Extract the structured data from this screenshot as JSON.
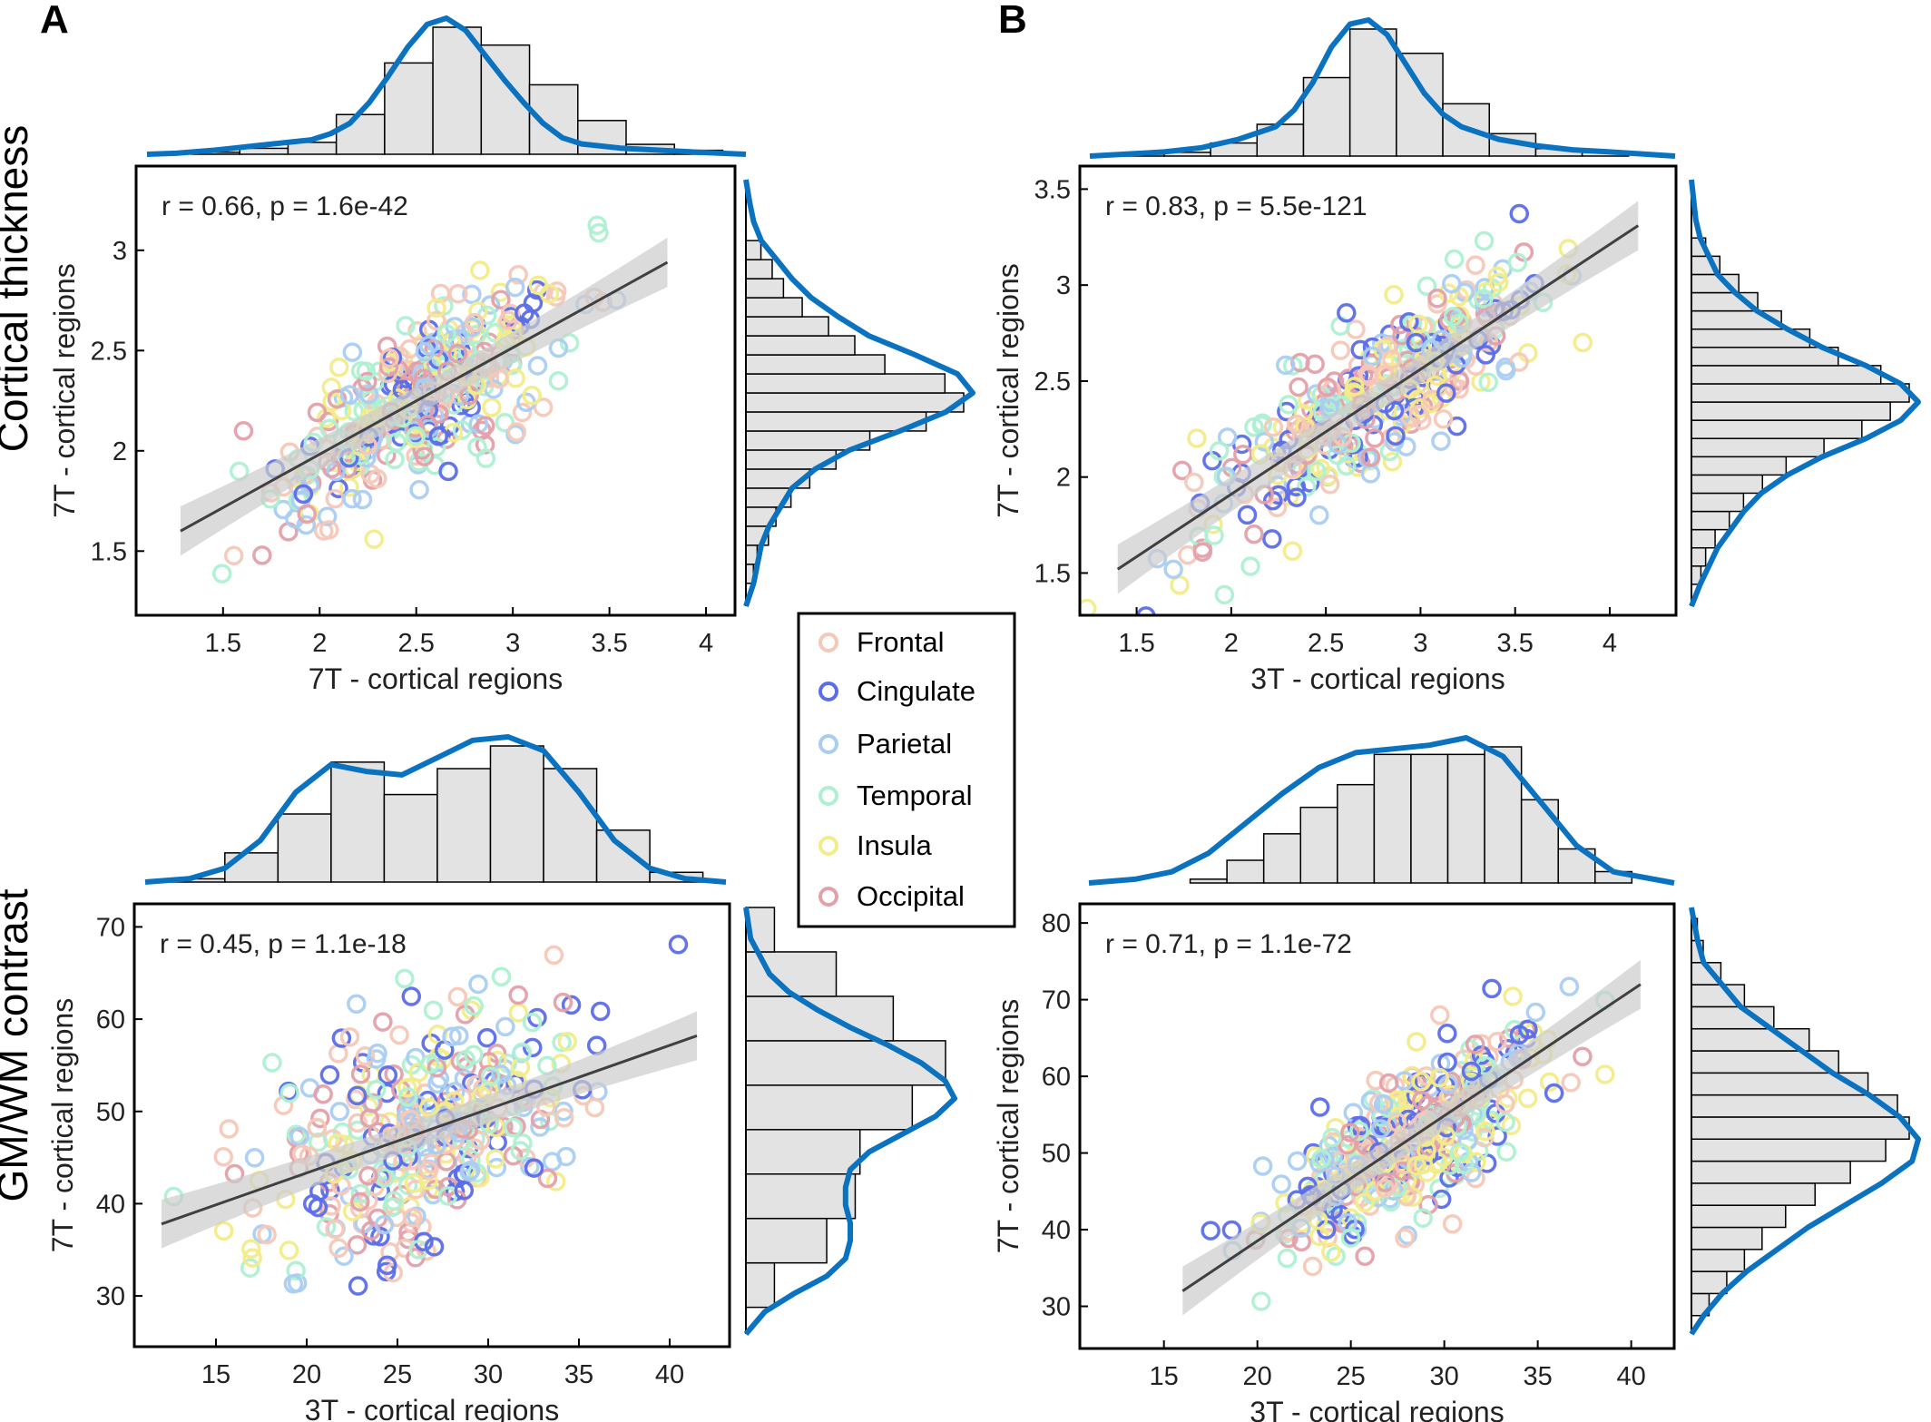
{
  "figure": {
    "panel_labels": [
      "A",
      "B"
    ],
    "row_labels": [
      "Cortical thickness",
      "GM/WM contrast"
    ]
  },
  "legend": {
    "items": [
      {
        "label": "Frontal",
        "color": "#f5c8b8"
      },
      {
        "label": "Cingulate",
        "color": "#5b6ee8"
      },
      {
        "label": "Parietal",
        "color": "#a9cdf2"
      },
      {
        "label": "Temporal",
        "color": "#aef0d2"
      },
      {
        "label": "Insula",
        "color": "#f2ec8a"
      },
      {
        "label": "Occipital",
        "color": "#e3a0aa"
      }
    ]
  },
  "colors": {
    "kde_line": "#0b72c0",
    "hist_fill": "#e3e3e3",
    "fit_line": "#404040",
    "ci_band": "#cccccc"
  },
  "chart_data": [
    {
      "type": "scatter",
      "id": "A-thickness",
      "xlabel": "7T - cortical regions",
      "ylabel": "7T - cortical regions",
      "annotation": "r = 0.66, p = 1.6e-42",
      "xlim": [
        1.05,
        4.15
      ],
      "ylim": [
        1.18,
        3.42
      ],
      "xticks": [
        1.5,
        2,
        2.5,
        3,
        3.5,
        4
      ],
      "yticks": [
        1.5,
        2,
        2.5,
        3
      ],
      "xtick_labels": [
        "1.5",
        "2",
        "2.5",
        "3",
        "3.5",
        "4"
      ],
      "ytick_labels": [
        "1.5",
        "2",
        "2.5",
        "3"
      ],
      "fit": {
        "x": [
          1.28,
          3.8
        ],
        "y": [
          1.6,
          2.94
        ]
      },
      "top_hist": {
        "bins": [
          1.28,
          1.53,
          1.78,
          2.03,
          2.28,
          2.53,
          2.78,
          3.03,
          3.28,
          3.53,
          3.78,
          4.03
        ],
        "counts": [
          1,
          3,
          6,
          20,
          46,
          64,
          55,
          35,
          17,
          5,
          2
        ]
      },
      "right_hist": {
        "bins": [
          1.3,
          1.4,
          1.5,
          1.6,
          1.7,
          1.8,
          1.9,
          2.0,
          2.1,
          2.2,
          2.3,
          2.4,
          2.5,
          2.6,
          2.7,
          2.8,
          2.9,
          3.0,
          3.1
        ],
        "counts": [
          2,
          3,
          6,
          8,
          12,
          17,
          24,
          33,
          48,
          58,
          53,
          37,
          29,
          22,
          15,
          10,
          7,
          4
        ]
      },
      "top_kde_x": [
        1.05,
        1.2,
        1.4,
        1.6,
        1.8,
        1.9,
        2.0,
        2.1,
        2.2,
        2.3,
        2.4,
        2.5,
        2.6,
        2.7,
        2.8,
        2.9,
        3.0,
        3.1,
        3.2,
        3.3,
        3.5,
        3.7,
        3.9,
        4.15
      ],
      "top_kde_y": [
        0,
        0.5,
        2,
        4,
        6,
        7,
        10,
        15,
        25,
        38,
        52,
        63,
        66,
        60,
        48,
        36,
        25,
        15,
        8,
        5,
        3,
        2,
        1,
        0
      ],
      "right_kde_y": [
        1.18,
        1.3,
        1.4,
        1.5,
        1.6,
        1.7,
        1.8,
        1.9,
        2.0,
        2.1,
        2.2,
        2.3,
        2.4,
        2.5,
        2.6,
        2.7,
        2.8,
        2.9,
        3.0,
        3.1,
        3.2,
        3.3,
        3.42
      ],
      "right_kde_x": [
        0,
        2,
        3,
        4,
        6,
        9,
        12,
        18,
        27,
        40,
        52,
        59,
        55,
        44,
        32,
        24,
        17,
        12,
        8,
        4,
        2,
        1,
        0
      ],
      "n": 360,
      "seed": 11
    },
    {
      "type": "scatter",
      "id": "B-thickness",
      "xlabel": "3T - cortical regions",
      "ylabel": "7T - cortical regions",
      "annotation": "r = 0.83, p = 5.5e-121",
      "xlim": [
        1.2,
        4.35
      ],
      "ylim": [
        1.28,
        3.62
      ],
      "xticks": [
        1.5,
        2,
        2.5,
        3,
        3.5,
        4
      ],
      "yticks": [
        1.5,
        2,
        2.5,
        3,
        3.5
      ],
      "xtick_labels": [
        "1.5",
        "2",
        "2.5",
        "3",
        "3.5",
        "4"
      ],
      "ytick_labels": [
        "1.5",
        "2",
        "2.5",
        "3",
        "3.5"
      ],
      "fit": {
        "x": [
          1.4,
          4.15
        ],
        "y": [
          1.52,
          3.31
        ]
      },
      "top_hist": {
        "bins": [
          1.35,
          1.6,
          1.85,
          2.1,
          2.35,
          2.6,
          2.85,
          3.1,
          3.35,
          3.6,
          3.85,
          4.1
        ],
        "counts": [
          1,
          2,
          7,
          17,
          42,
          68,
          55,
          28,
          12,
          4,
          2
        ]
      },
      "right_hist": {
        "bins": [
          1.4,
          1.5,
          1.6,
          1.7,
          1.8,
          1.9,
          2.0,
          2.1,
          2.2,
          2.3,
          2.4,
          2.5,
          2.6,
          2.7,
          2.8,
          2.9,
          3.0,
          3.1,
          3.2,
          3.3
        ],
        "counts": [
          2,
          3,
          5,
          8,
          11,
          15,
          20,
          28,
          36,
          42,
          46,
          40,
          31,
          25,
          19,
          14,
          10,
          6,
          3
        ]
      },
      "top_kde_x": [
        1.2,
        1.4,
        1.6,
        1.8,
        2.0,
        2.2,
        2.3,
        2.4,
        2.5,
        2.6,
        2.7,
        2.8,
        2.9,
        3.0,
        3.1,
        3.2,
        3.4,
        3.6,
        3.8,
        4.0,
        4.35
      ],
      "top_kde_y": [
        0,
        1,
        2,
        4,
        8,
        14,
        22,
        35,
        52,
        63,
        65,
        58,
        44,
        30,
        20,
        14,
        8,
        5,
        3,
        2,
        0
      ],
      "right_kde_y": [
        1.28,
        1.4,
        1.5,
        1.6,
        1.7,
        1.8,
        1.9,
        2.0,
        2.1,
        2.2,
        2.3,
        2.4,
        2.5,
        2.6,
        2.7,
        2.8,
        2.9,
        3.0,
        3.1,
        3.2,
        3.3,
        3.4,
        3.62
      ],
      "right_kde_x": [
        0,
        2,
        4,
        6,
        9,
        12,
        16,
        22,
        30,
        40,
        48,
        52,
        48,
        40,
        30,
        22,
        15,
        10,
        6,
        4,
        2,
        1,
        0
      ],
      "n": 380,
      "seed": 23
    },
    {
      "type": "scatter",
      "id": "A-contrast",
      "xlabel": "3T - cortical regions",
      "ylabel": "7T - cortical regions",
      "annotation": "r = 0.45, p = 1.1e-18",
      "xlim": [
        10.5,
        43.3
      ],
      "ylim": [
        24.5,
        72.5
      ],
      "xticks": [
        15,
        20,
        25,
        30,
        35,
        40
      ],
      "yticks": [
        30,
        40,
        50,
        60,
        70
      ],
      "xtick_labels": [
        "15",
        "20",
        "25",
        "30",
        "35",
        "40"
      ],
      "ytick_labels": [
        "30",
        "40",
        "50",
        "60",
        "70"
      ],
      "fit": {
        "x": [
          12,
          41.5
        ],
        "y": [
          37.8,
          58.2
        ]
      },
      "top_hist": {
        "bins": [
          12,
          15,
          18,
          21,
          24,
          27,
          30,
          33,
          36,
          39,
          42
        ],
        "counts": [
          1,
          9,
          21,
          37,
          27,
          35,
          42,
          35,
          16,
          3
        ]
      },
      "right_hist": {
        "bins": [
          27.5,
          32.5,
          37.5,
          42.5,
          47.5,
          52.5,
          57.5,
          62.5,
          67.5,
          72.5
        ],
        "counts": [
          6,
          17,
          23,
          24,
          35,
          42,
          31,
          19,
          6
        ]
      },
      "top_kde_x": [
        10.5,
        13,
        15,
        17,
        19,
        21,
        23,
        25,
        27,
        29,
        31,
        33,
        35,
        37,
        39,
        41,
        43.3
      ],
      "top_kde_y": [
        0,
        1,
        4,
        12,
        26,
        34,
        32,
        31,
        36,
        41,
        42,
        38,
        26,
        12,
        4,
        1,
        0
      ],
      "right_kde_y": [
        24.5,
        27,
        29,
        31,
        33,
        35,
        37,
        39,
        41,
        43,
        45,
        47,
        49,
        51,
        53,
        55,
        57,
        59,
        61,
        63,
        65,
        67,
        69,
        72.5
      ],
      "right_kde_x": [
        0,
        4,
        10,
        17,
        21,
        22,
        22,
        21,
        21,
        22,
        26,
        33,
        40,
        44,
        42,
        37,
        30,
        22,
        15,
        9,
        5,
        3,
        1,
        0
      ],
      "n": 360,
      "seed": 37
    },
    {
      "type": "scatter",
      "id": "B-contrast",
      "xlabel": "3T - cortical regions",
      "ylabel": "7T - cortical regions",
      "annotation": "r = 0.71, p = 1.1e-72",
      "xlim": [
        10.5,
        42.3
      ],
      "ylim": [
        24.5,
        82.5
      ],
      "xticks": [
        15,
        20,
        25,
        30,
        35,
        40
      ],
      "yticks": [
        30,
        40,
        50,
        60,
        70,
        80
      ],
      "xtick_labels": [
        "15",
        "20",
        "25",
        "30",
        "35",
        "40"
      ],
      "ytick_labels": [
        "30",
        "40",
        "50",
        "60",
        "70",
        "80"
      ],
      "fit": {
        "x": [
          16,
          40.5
        ],
        "y": [
          32,
          72
        ]
      },
      "top_hist": {
        "bins": [
          16,
          18,
          20,
          22,
          24,
          26,
          28,
          30,
          32,
          34,
          36,
          38,
          40
        ],
        "counts": [
          1,
          6,
          13,
          20,
          26,
          34,
          34,
          34,
          36,
          22,
          9,
          3
        ]
      },
      "right_hist": {
        "bins": [
          27,
          30,
          33,
          36,
          39,
          42,
          45,
          48,
          51,
          54,
          57,
          60,
          63,
          66,
          69,
          72,
          75,
          78,
          81
        ],
        "counts": [
          3,
          6,
          9,
          12,
          16,
          21,
          27,
          33,
          37,
          35,
          30,
          25,
          20,
          14,
          9,
          5,
          2,
          1
        ]
      },
      "top_kde_x": [
        10.5,
        13,
        15,
        17,
        19,
        21,
        23,
        25,
        27,
        29,
        31,
        33,
        35,
        37,
        39,
        42.3
      ],
      "top_kde_y": [
        0,
        1,
        3,
        8,
        16,
        24,
        31,
        35,
        36,
        37,
        39,
        34,
        22,
        10,
        3,
        0
      ],
      "right_kde_y": [
        24.5,
        27,
        30,
        33,
        36,
        39,
        42,
        45,
        48,
        51,
        54,
        57,
        60,
        63,
        66,
        69,
        72,
        75,
        78,
        82.5
      ],
      "right_kde_x": [
        0,
        2,
        5,
        9,
        14,
        19,
        25,
        31,
        36,
        37,
        34,
        29,
        23,
        18,
        13,
        8,
        5,
        2,
        1,
        0
      ],
      "n": 420,
      "seed": 53
    }
  ]
}
